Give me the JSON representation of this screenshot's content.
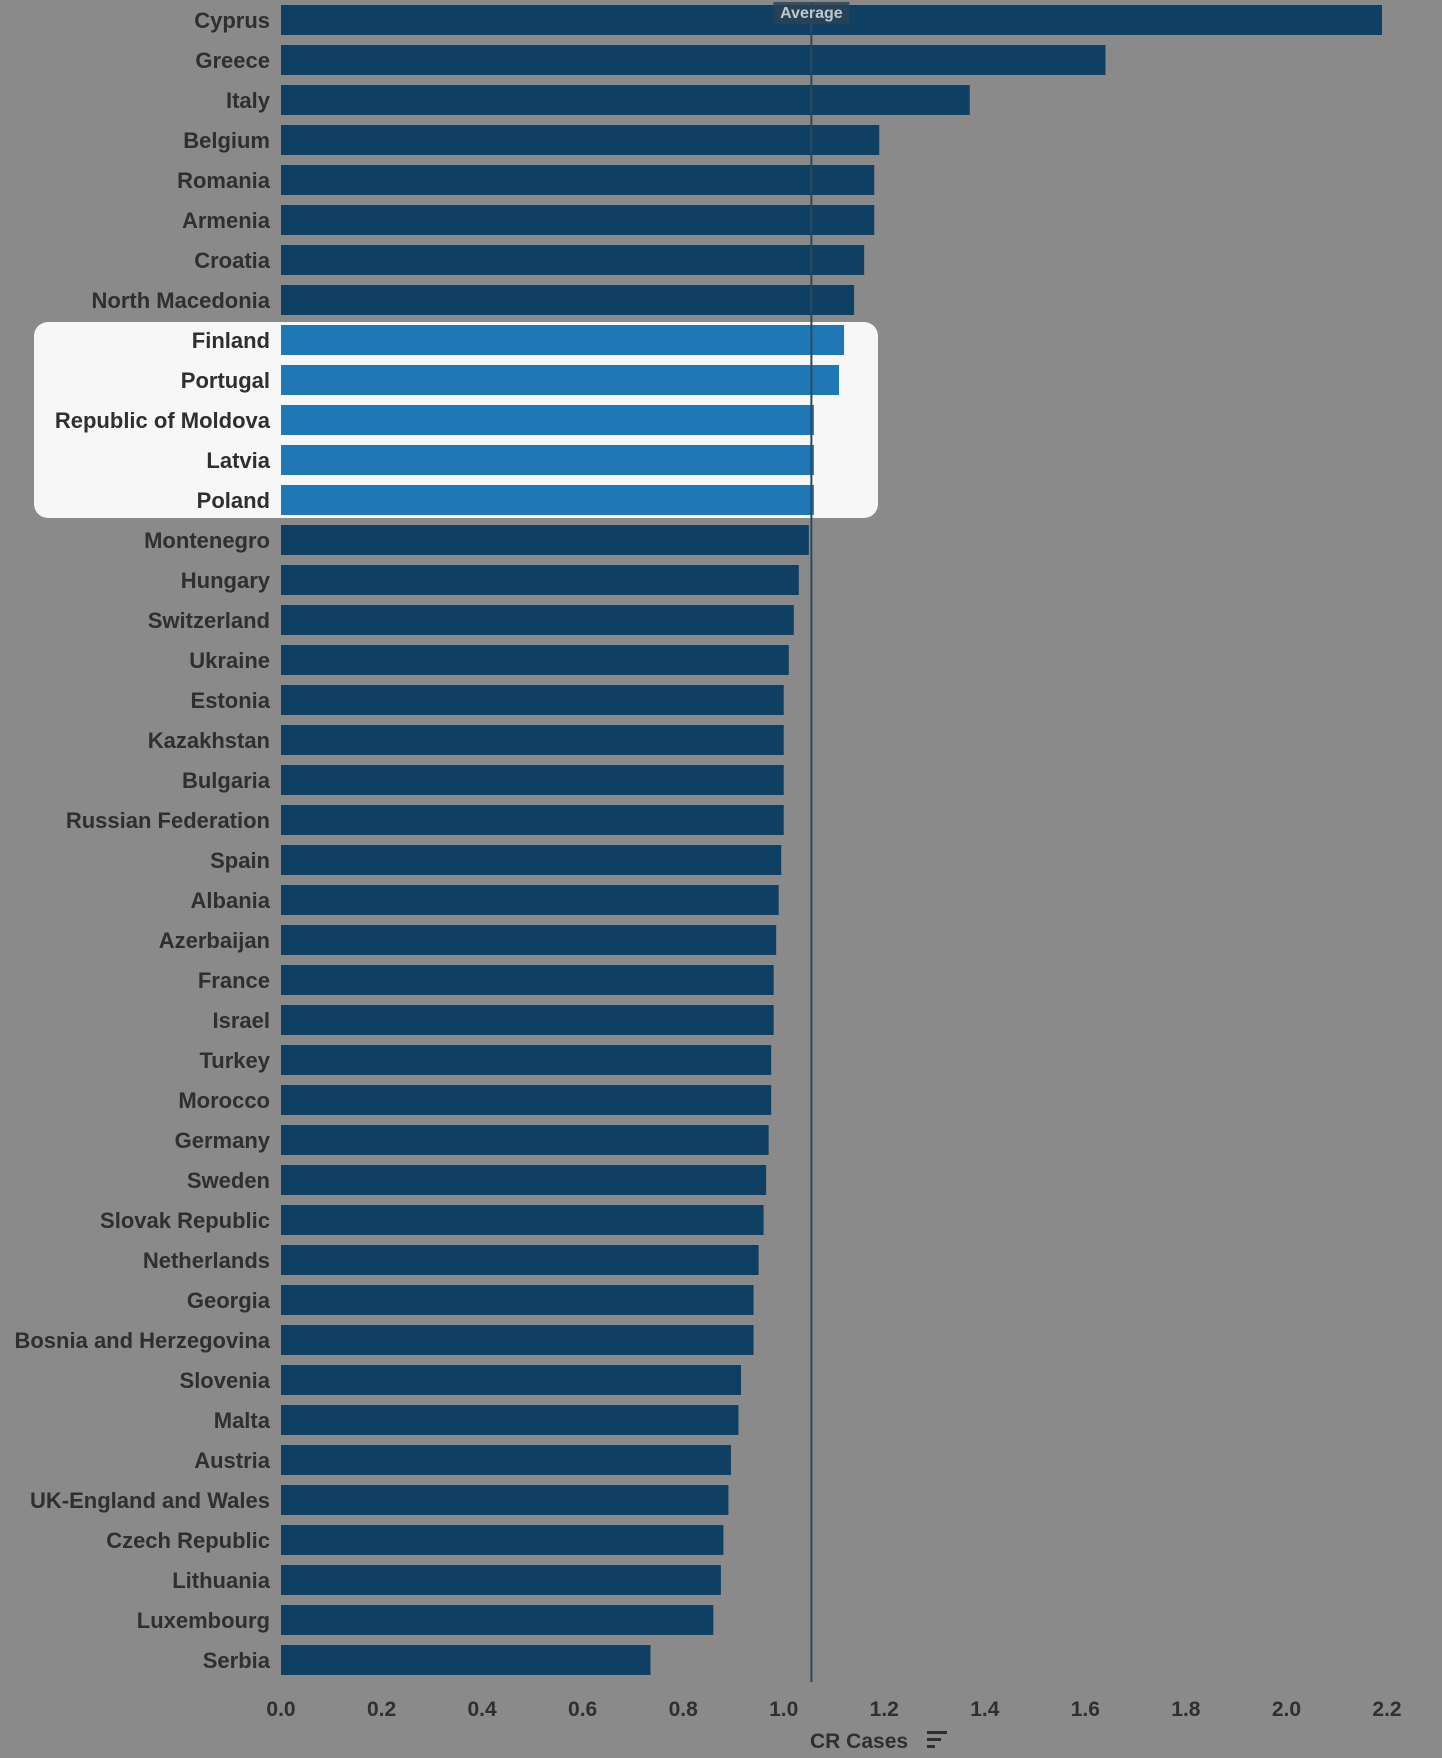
{
  "chart_data": {
    "type": "bar",
    "orientation": "horizontal",
    "categories": [
      "Cyprus",
      "Greece",
      "Italy",
      "Belgium",
      "Romania",
      "Armenia",
      "Croatia",
      "North Macedonia",
      "Finland",
      "Portugal",
      "Republic of Moldova",
      "Latvia",
      "Poland",
      "Montenegro",
      "Hungary",
      "Switzerland",
      "Ukraine",
      "Estonia",
      "Kazakhstan",
      "Bulgaria",
      "Russian Federation",
      "Spain",
      "Albania",
      "Azerbaijan",
      "France",
      "Israel",
      "Turkey",
      "Morocco",
      "Germany",
      "Sweden",
      "Slovak Republic",
      "Netherlands",
      "Georgia",
      "Bosnia and Herzegovina",
      "Slovenia",
      "Malta",
      "Austria",
      "UK-England and Wales",
      "Czech Republic",
      "Lithuania",
      "Luxembourg",
      "Serbia"
    ],
    "values": [
      2.19,
      1.64,
      1.37,
      1.19,
      1.18,
      1.18,
      1.16,
      1.14,
      1.12,
      1.11,
      1.06,
      1.06,
      1.06,
      1.05,
      1.03,
      1.02,
      1.01,
      1.0,
      1.0,
      1.0,
      1.0,
      0.995,
      0.99,
      0.985,
      0.98,
      0.98,
      0.975,
      0.975,
      0.97,
      0.965,
      0.96,
      0.95,
      0.94,
      0.94,
      0.915,
      0.91,
      0.895,
      0.89,
      0.88,
      0.875,
      0.86,
      0.735
    ],
    "highlighted": [
      "Finland",
      "Portugal",
      "Republic of Moldova",
      "Latvia",
      "Poland"
    ],
    "reference_line": {
      "label": "Average",
      "value": 1.055
    },
    "xlabel": "CR Cases",
    "xlim": [
      0,
      2.2
    ],
    "xticks": [
      "0.0",
      "0.2",
      "0.4",
      "0.6",
      "0.8",
      "1.0",
      "1.2",
      "1.4",
      "1.6",
      "1.8",
      "2.0",
      "2.2"
    ],
    "grid": false,
    "colors": {
      "bar": "#0f3f63",
      "bar_highlight": "#1f77b4",
      "highlight_panel": "#f7f7f7",
      "background": "#8a8a8a",
      "average_line": "#2a4a63"
    },
    "sort_icon": "sort-descending-icon"
  }
}
